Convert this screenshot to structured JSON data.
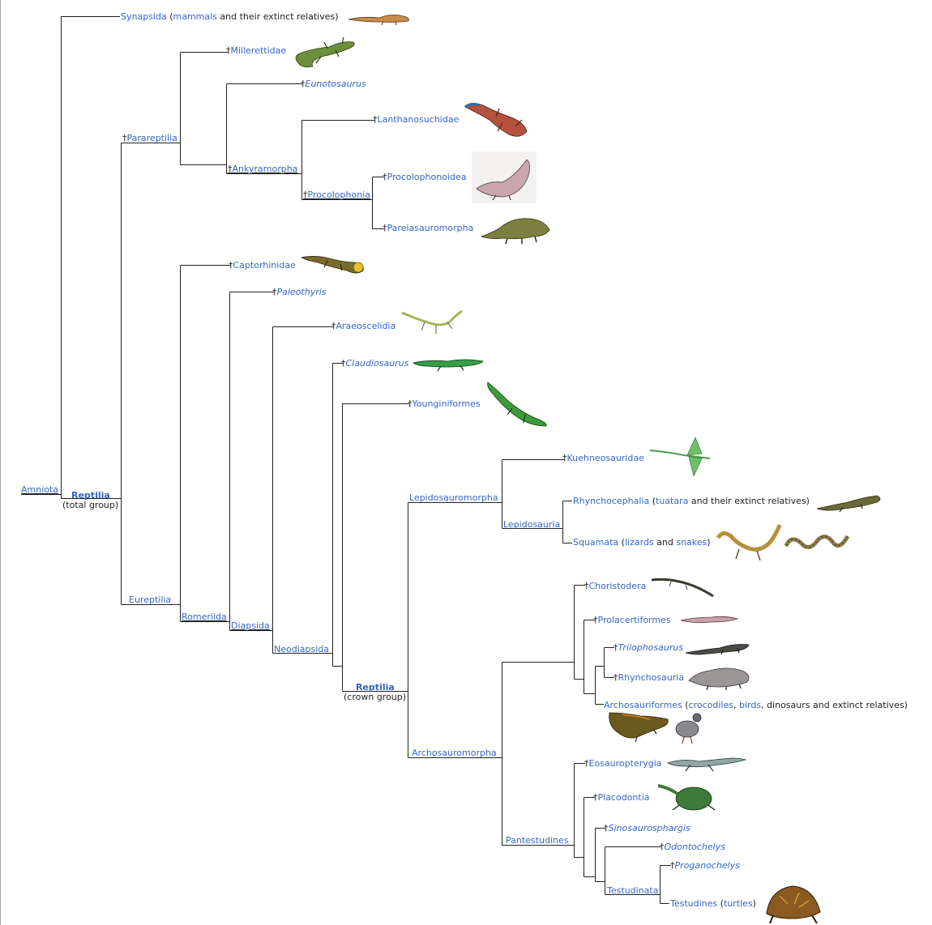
{
  "labels": {
    "amniota": "Amniota",
    "reptilia_total": "Reptilia",
    "reptilia_total_note": "(total group)",
    "synapsida": "Synapsida",
    "synapsida_open": " (",
    "mammals": "mammals",
    "synapsida_rest": " and their extinct relatives)",
    "parareptilia": "Parareptilia",
    "millerettidae": "Millerettidae",
    "eunotosaurus": "Eunotosaurus",
    "ankyramorpha": "Ankyramorpha",
    "lanthanosuchidae": "Lanthanosuchidae",
    "procolophonia": "Procolophonia",
    "procolophonoidea": "Procolophonoidea",
    "pareiasauromorpha": "Pareiasauromorpha",
    "eureptilia": "Eureptilia",
    "captorhinidae": "Captorhinidae",
    "romeriida": "Romeriida",
    "paleothyris": "Paleothyris",
    "diapsida": "Diapsida",
    "araeoscelidia": "Araeoscelidia",
    "neodiapsida": "Neodiapsida",
    "claudiosaurus": "Claudiosaurus",
    "younginiformes": "Younginiformes",
    "reptilia_crown": "Reptilia",
    "reptilia_crown_note": "(crown group)",
    "lepidosauromorpha": "Lepidosauromorpha",
    "kuehneosauridae": "Kuehneosauridae",
    "lepidosauria": "Lepidosauria",
    "rhynchocephalia": "Rhynchocephalia",
    "tuatara": "tuatara",
    "rhyncho_rest": " and their extinct relatives)",
    "squamata": "Squamata",
    "lizards": "lizards",
    "and": " and ",
    "snakes": "snakes",
    "close": ")",
    "open": " (",
    "archosauromorpha": "Archosauromorpha",
    "choristodera": "Choristodera",
    "prolacertiformes": "Prolacertiformes",
    "trilophosaurus": "Trilophosaurus",
    "rhynchosauria": "Rhynchosauria",
    "archosauriformes": "Archosauriformes",
    "crocodiles": "crocodiles",
    "comma": ", ",
    "birds": "birds",
    "archo_rest": ", dinosaurs and extinct relatives)",
    "pantestudines": "Pantestudines",
    "eosauropterygia": "Eosauropterygia",
    "placodontia": "Placodontia",
    "sinosaurosphargis": "Sinosaurosphargis",
    "odontochelys": "Odontochelys",
    "testudinata": "Testudinata",
    "proganochelys": "Proganochelys",
    "testudines": "Testudines",
    "turtles": "turtles",
    "dagger": "†"
  },
  "colors": {
    "link": "#3366cc",
    "text": "#202122",
    "line": "#202122",
    "border": "#a2a9b1"
  },
  "icons": {
    "synapsid": "synapsid-illustration",
    "millerettid": "lizard-illustration",
    "lanthanosuchid": "lizard-illustration",
    "procolophonoid": "reptile-illustration",
    "pareiasaur": "reptile-illustration",
    "captorhinid": "lizard-illustration",
    "araeoscelid": "lizard-illustration",
    "claudiosaurus": "lizard-illustration",
    "younginiform": "lizard-illustration",
    "kuehneosaur": "gliding-lizard-illustration",
    "tuatara": "tuatara-illustration",
    "lizard": "lizard-illustration",
    "snake": "snake-illustration",
    "choristodere": "reptile-illustration",
    "prolacertiform": "reptile-illustration",
    "trilophosaurus": "lizard-illustration",
    "rhynchosaur": "reptile-illustration",
    "crocodile": "crocodile-illustration",
    "pigeon": "bird-illustration",
    "eosauropterygian": "plesiosaur-illustration",
    "placodont": "placodont-illustration",
    "tortoise": "tortoise-illustration"
  }
}
